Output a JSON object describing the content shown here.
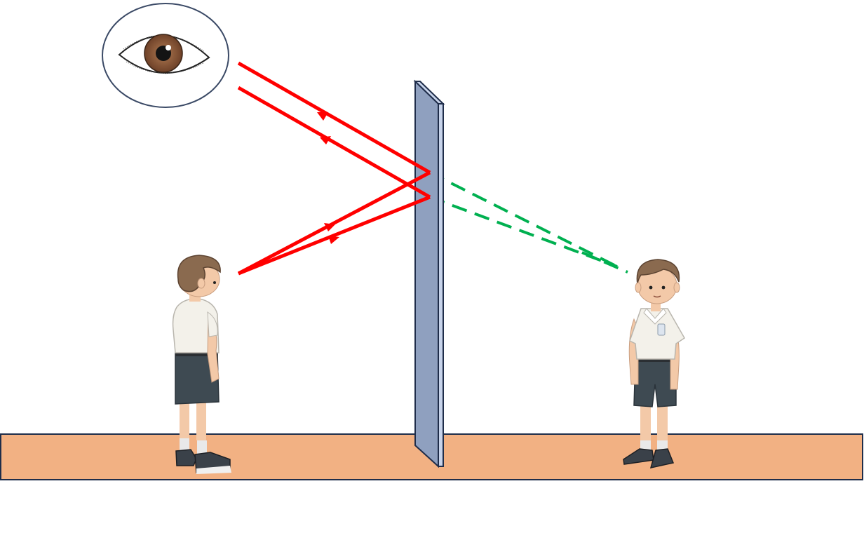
{
  "diagram": {
    "kind": "plane-mirror-reflection",
    "labels": []
  },
  "colors": {
    "background": "#ffffff",
    "floor": "#f2b183",
    "floor_stroke": "#1f2d4a",
    "mirror_face": "#8fa0bf",
    "mirror_edge": "#c7d3ea",
    "mirror_stroke": "#1f2d4a",
    "incident_ray": "#ff0000",
    "virtual_ray": "#00b050",
    "eye_outline": "#3b4a66",
    "iris": "#8b5a3c",
    "shirt": "#f3f1ea",
    "shorts": "#3e4a52",
    "hair": "#8a6a4f",
    "skin": "#f3c9a8"
  },
  "elements": {
    "eye": {
      "icon": "eye-icon"
    },
    "object_boy": {
      "icon": "boy-figure",
      "facing": "right"
    },
    "image_boy": {
      "icon": "boy-figure",
      "facing": "front"
    },
    "mirror": {
      "icon": "plane-mirror"
    },
    "floor": {
      "icon": "floor"
    }
  }
}
